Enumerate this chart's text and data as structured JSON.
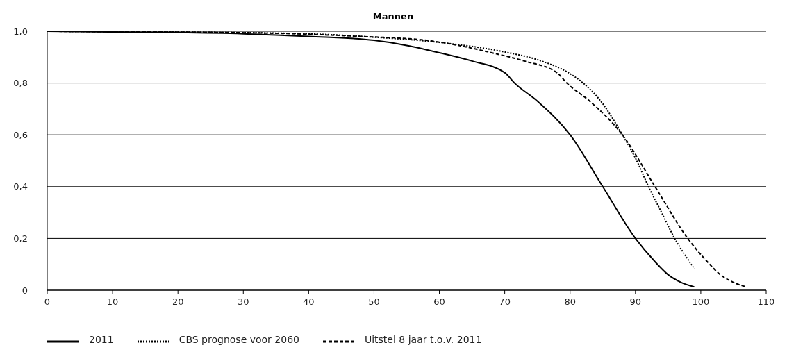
{
  "chart_data": {
    "type": "line",
    "title": "Mannen",
    "xlim": [
      0,
      110
    ],
    "xticks": [
      0,
      10,
      20,
      30,
      40,
      50,
      60,
      70,
      80,
      90,
      100,
      110
    ],
    "ylim": [
      0,
      1
    ],
    "yticks": [
      0,
      {
        "value": 0.2,
        "label": "0,2"
      },
      {
        "value": 0.4,
        "label": "0,4"
      },
      {
        "value": 0.6,
        "label": "0,6"
      },
      {
        "value": 0.8,
        "label": "0,8"
      },
      {
        "value": 1,
        "label": "1,0"
      }
    ],
    "grid": "y",
    "legend": "bottom",
    "marker": "none",
    "series": [
      {
        "name": "2011",
        "color": "#000000",
        "line_style": "solid",
        "x": [
          0,
          10,
          20,
          30,
          40,
          50,
          55,
          60,
          65,
          70,
          71.5,
          75,
          80,
          85,
          90,
          93,
          95,
          97,
          99
        ],
        "values": [
          1.0,
          0.997,
          0.995,
          0.99,
          0.98,
          0.965,
          0.945,
          0.917,
          0.885,
          0.84,
          0.8,
          0.73,
          0.6,
          0.4,
          0.2,
          0.11,
          0.06,
          0.03,
          0.013
        ]
      },
      {
        "name": "CBS prognose voor 2060",
        "color": "#000000",
        "line_style": "dotted",
        "x": [
          0,
          20,
          40,
          50,
          60,
          70,
          75,
          80,
          82,
          85,
          88,
          90,
          92,
          94,
          96,
          98,
          99
        ],
        "values": [
          1.0,
          0.997,
          0.99,
          0.977,
          0.957,
          0.92,
          0.89,
          0.836,
          0.8,
          0.72,
          0.6,
          0.51,
          0.4,
          0.3,
          0.2,
          0.12,
          0.083
        ]
      },
      {
        "name": "Uitstel 8 jaar t.o.v. 2011",
        "color": "#000000",
        "line_style": "dashed",
        "x": [
          0,
          18,
          28,
          38,
          48,
          58,
          63,
          68,
          73,
          78,
          79.5,
          83,
          88,
          93,
          98,
          101,
          103,
          105,
          107
        ],
        "values": [
          1.0,
          0.997,
          0.995,
          0.99,
          0.98,
          0.965,
          0.945,
          0.917,
          0.885,
          0.84,
          0.8,
          0.73,
          0.6,
          0.4,
          0.2,
          0.11,
          0.06,
          0.03,
          0.013
        ]
      }
    ]
  }
}
